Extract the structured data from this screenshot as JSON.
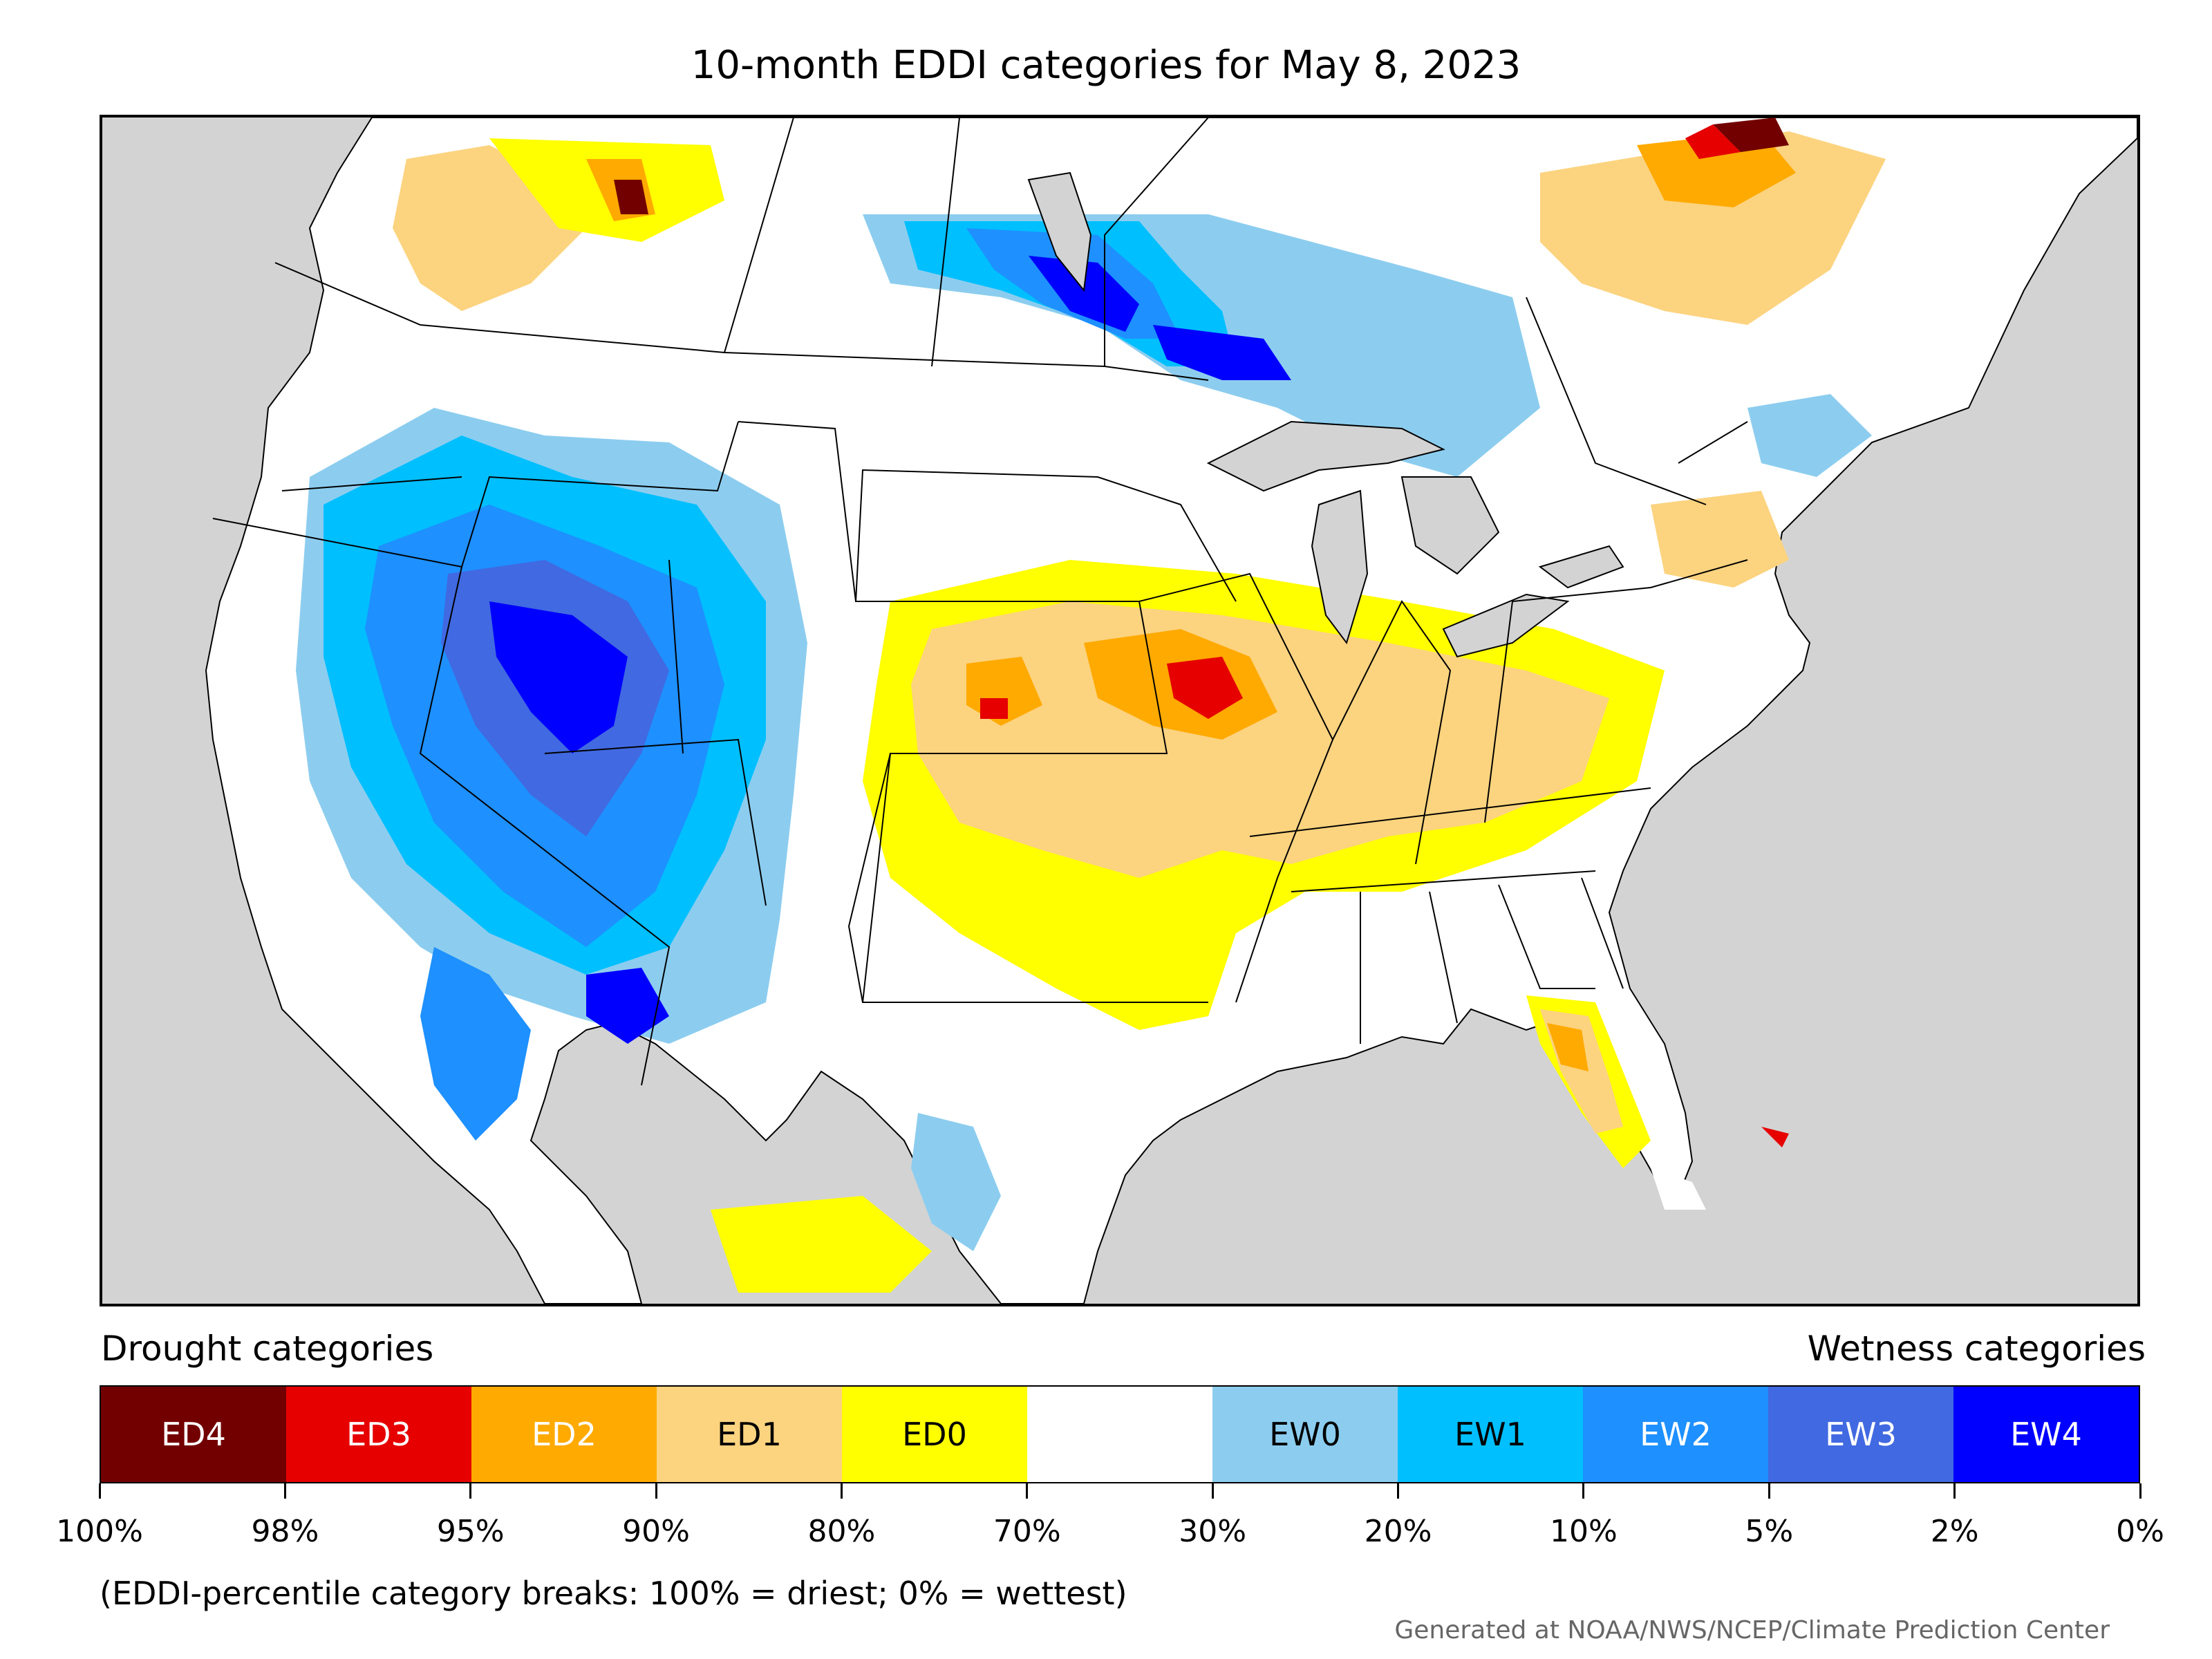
{
  "title": "10-month EDDI categories for May 8, 2023",
  "legend": {
    "drought_heading": "Drought categories",
    "wetness_heading": "Wetness categories",
    "categories": [
      {
        "label": "ED4",
        "color": "#730000",
        "text_color": "#ffffff"
      },
      {
        "label": "ED3",
        "color": "#e60000",
        "text_color": "#ffffff"
      },
      {
        "label": "ED2",
        "color": "#ffaa00",
        "text_color": "#ffffff"
      },
      {
        "label": "ED1",
        "color": "#fcd37f",
        "text_color": "#000000"
      },
      {
        "label": "ED0",
        "color": "#ffff00",
        "text_color": "#000000"
      },
      {
        "label": "",
        "color": "#ffffff",
        "text_color": "#000000"
      },
      {
        "label": "EW0",
        "color": "#8ccdef",
        "text_color": "#000000"
      },
      {
        "label": "EW1",
        "color": "#00bfff",
        "text_color": "#000000"
      },
      {
        "label": "EW2",
        "color": "#1e90ff",
        "text_color": "#ffffff"
      },
      {
        "label": "EW3",
        "color": "#4169e1",
        "text_color": "#ffffff"
      },
      {
        "label": "EW4",
        "color": "#0000ff",
        "text_color": "#ffffff"
      }
    ],
    "breaks": [
      "100%",
      "98%",
      "95%",
      "90%",
      "80%",
      "70%",
      "30%",
      "20%",
      "10%",
      "5%",
      "2%",
      "0%"
    ]
  },
  "note": "(EDDI-percentile category breaks: 100% = driest; 0% = wettest)",
  "credit": "Generated at NOAA/NWS/NCEP/Climate Prediction Center",
  "colors": {
    "ocean": "#d3d3d3",
    "lake": "#d3d3d3",
    "border": "#000000"
  }
}
